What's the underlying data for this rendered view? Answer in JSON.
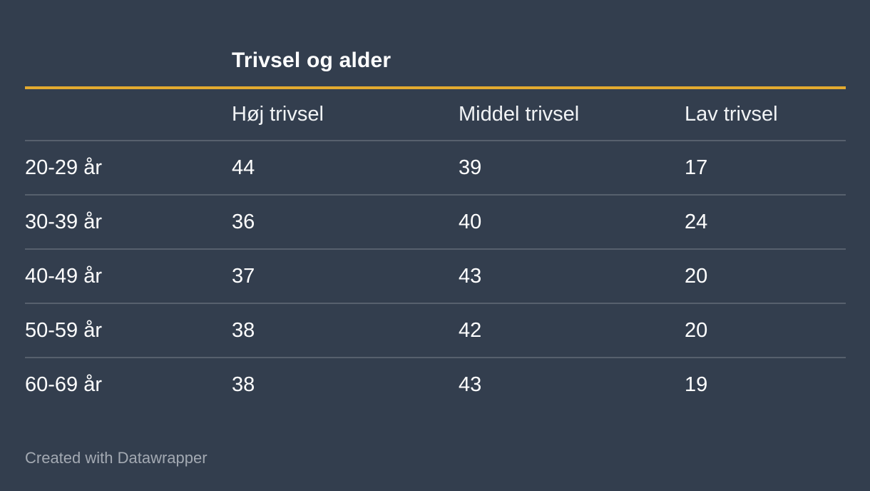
{
  "colors": {
    "background": "#333E4E",
    "accent": "#E3AA2F",
    "text": "#FFFFFF",
    "header-text": "#F1F3F5",
    "muted-text": "#A3A9B2",
    "divider": "rgba(255,255,255,0.18)"
  },
  "chart_data": {
    "type": "table",
    "title": "Trivsel og alder",
    "categories": [
      "20-29 år",
      "30-39 år",
      "40-49 år",
      "50-59 år",
      "60-69 år"
    ],
    "series": [
      {
        "name": "Høj trivsel",
        "values": [
          44,
          36,
          37,
          38,
          38
        ]
      },
      {
        "name": "Middel trivsel",
        "values": [
          39,
          40,
          43,
          42,
          43
        ]
      },
      {
        "name": "Lav trivsel",
        "values": [
          17,
          24,
          20,
          20,
          19
        ]
      }
    ],
    "layout": {
      "first_column_header": "",
      "header_rule_color_is_accent": true,
      "row_dividers": true,
      "last_row_divider": false
    }
  },
  "footer": {
    "text": "Created with Datawrapper"
  }
}
